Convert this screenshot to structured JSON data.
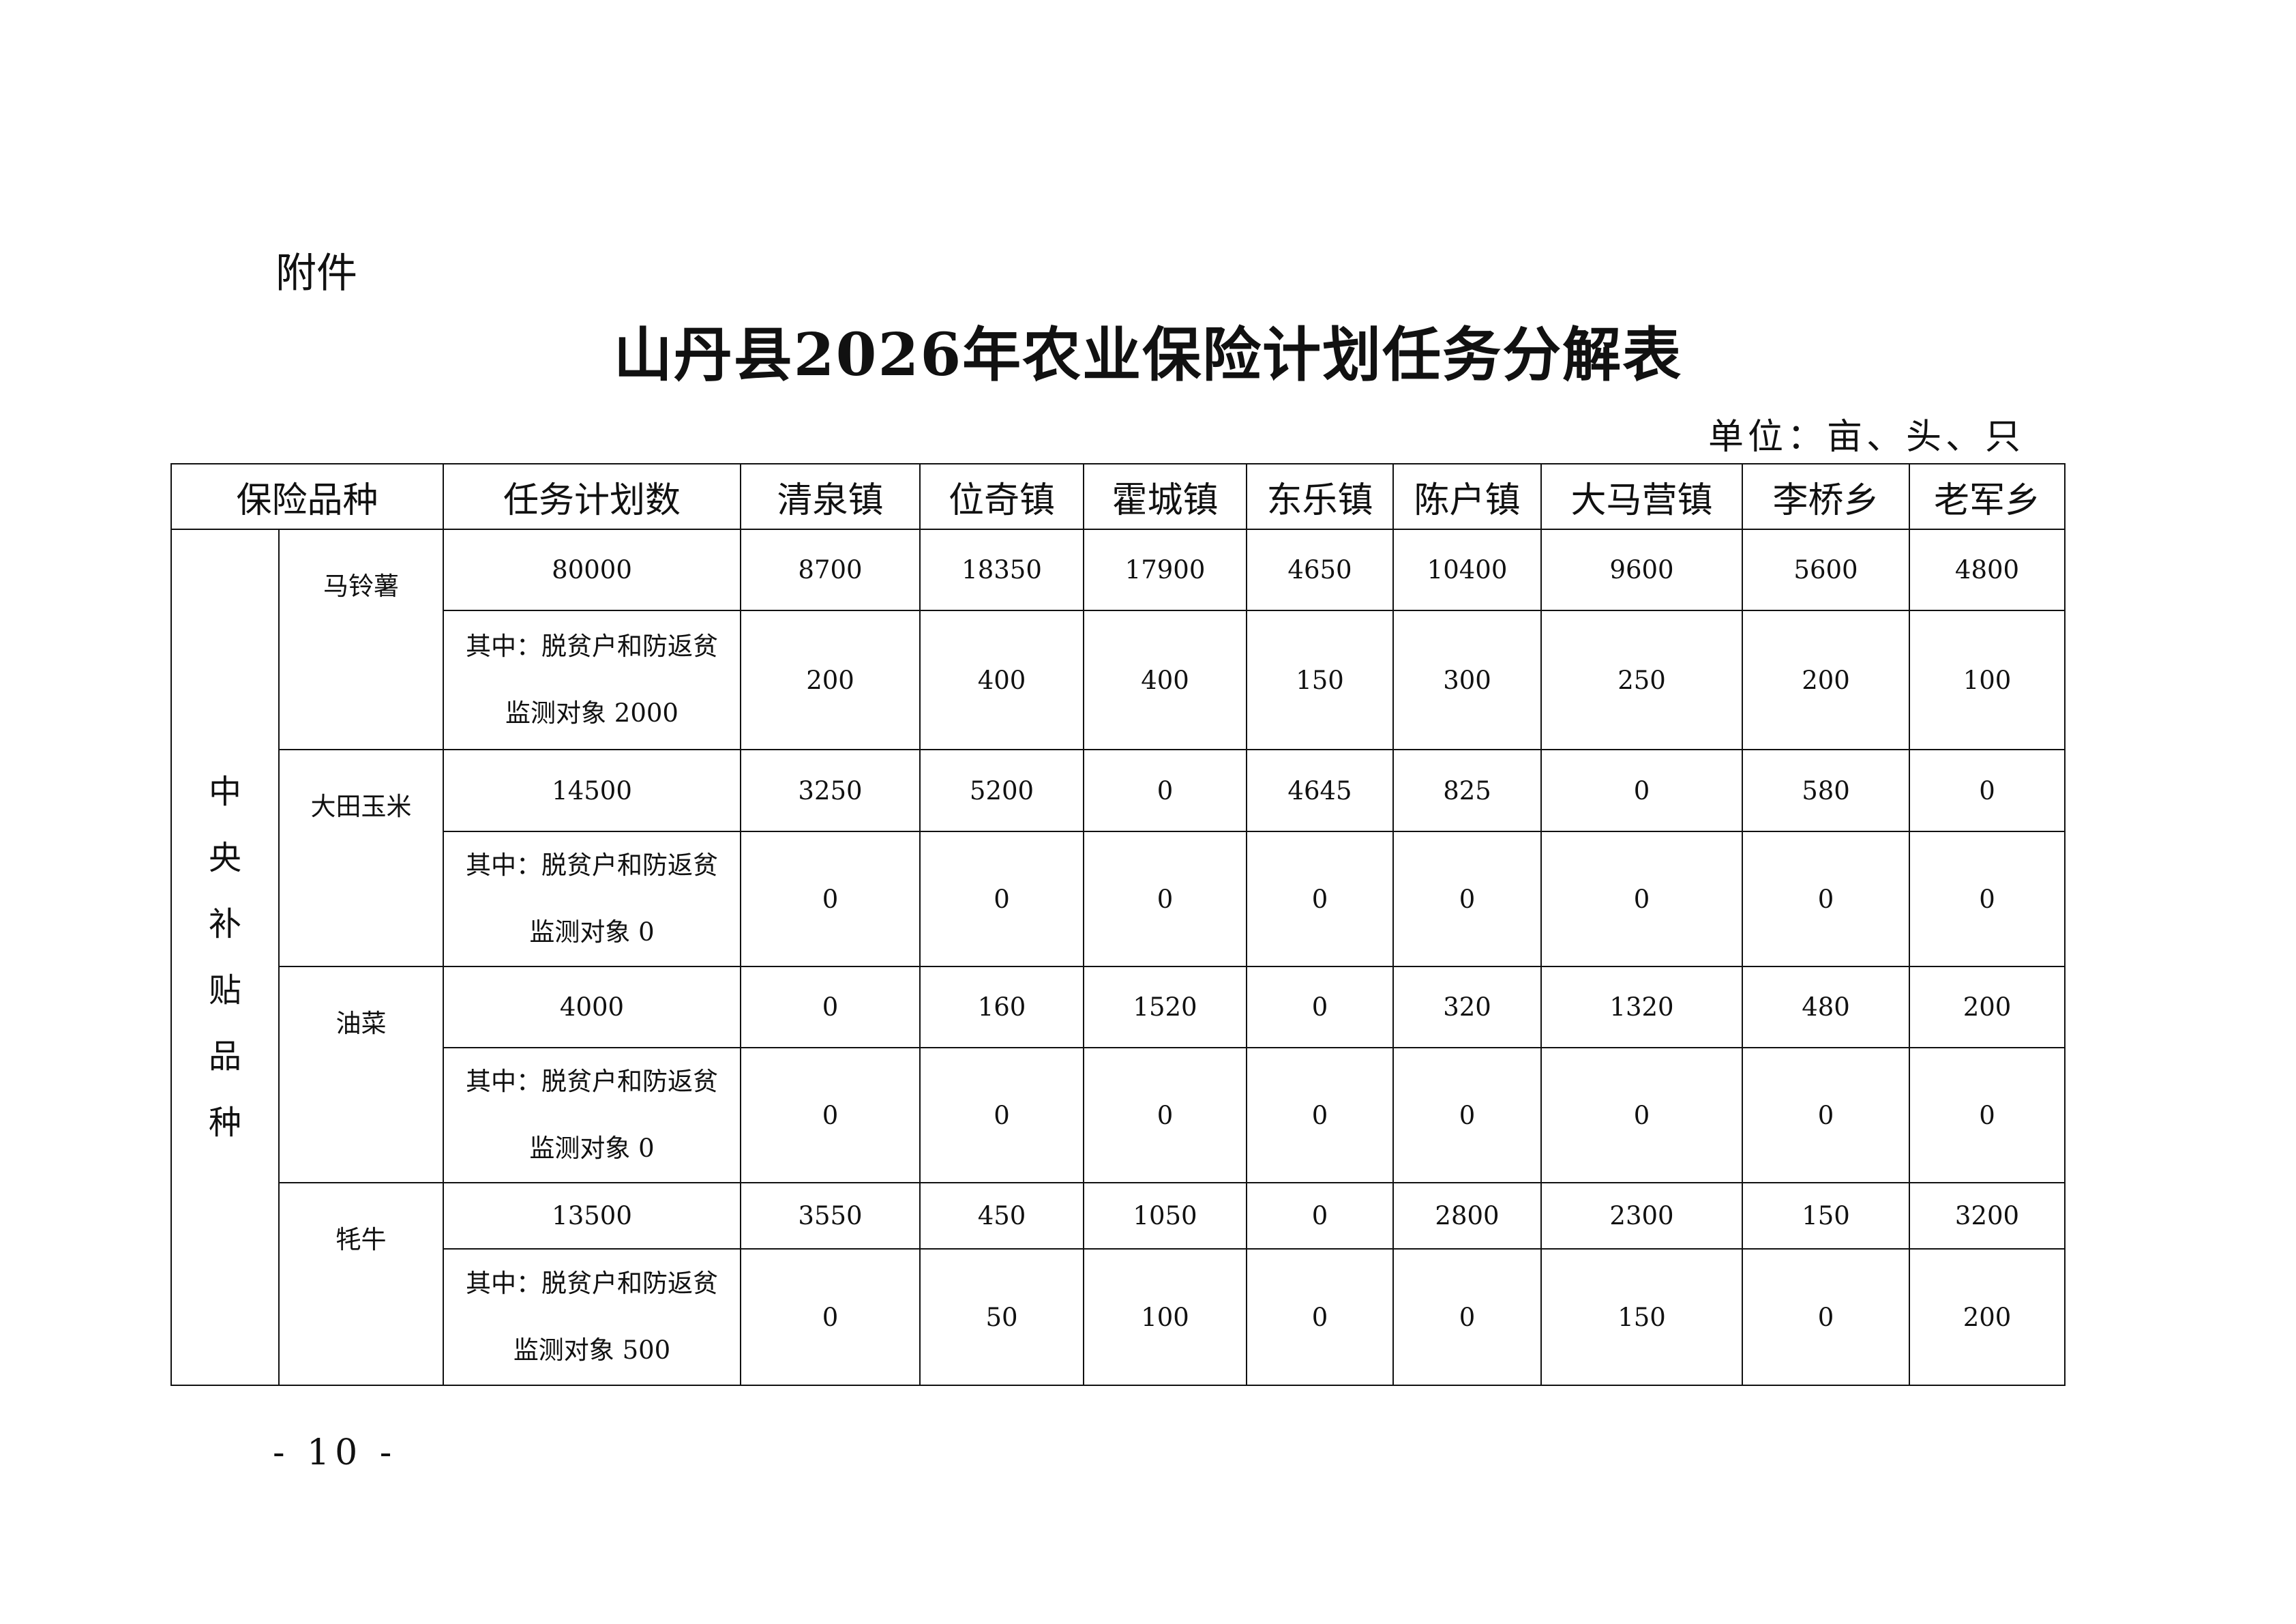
{
  "attachment_label": "附件",
  "title": "山丹县2026年农业保险计划任务分解表",
  "unit": "单位：亩、头、只",
  "headers": [
    "保险品种",
    "任务计划数",
    "清泉镇",
    "位奇镇",
    "霍城镇",
    "东乐镇",
    "陈户镇",
    "大马营镇",
    "李桥乡",
    "老军乡"
  ],
  "category": [
    "中",
    "央",
    "补",
    "贴",
    "品",
    "种"
  ],
  "crops": [
    {
      "name": "马铃薯",
      "total": "80000",
      "values": [
        "8700",
        "18350",
        "17900",
        "4650",
        "10400",
        "9600",
        "5600",
        "4800"
      ],
      "sub_line1": "其中：脱贫户和防返贫",
      "sub_line2": "监测对象 2000",
      "sub_values": [
        "200",
        "400",
        "400",
        "150",
        "300",
        "250",
        "200",
        "100"
      ]
    },
    {
      "name": "大田玉米",
      "total": "14500",
      "values": [
        "3250",
        "5200",
        "0",
        "4645",
        "825",
        "0",
        "580",
        "0"
      ],
      "sub_line1": "其中：脱贫户和防返贫",
      "sub_line2": "监测对象 0",
      "sub_values": [
        "0",
        "0",
        "0",
        "0",
        "0",
        "0",
        "0",
        "0"
      ]
    },
    {
      "name": "油菜",
      "total": "4000",
      "values": [
        "0",
        "160",
        "1520",
        "0",
        "320",
        "1320",
        "480",
        "200"
      ],
      "sub_line1": "其中：脱贫户和防返贫",
      "sub_line2": "监测对象 0",
      "sub_values": [
        "0",
        "0",
        "0",
        "0",
        "0",
        "0",
        "0",
        "0"
      ]
    },
    {
      "name": "牦牛",
      "total": "13500",
      "values": [
        "3550",
        "450",
        "1050",
        "0",
        "2800",
        "2300",
        "150",
        "3200"
      ],
      "sub_line1": "其中：脱贫户和防返贫",
      "sub_line2": "监测对象 500",
      "sub_values": [
        "0",
        "50",
        "100",
        "0",
        "0",
        "150",
        "0",
        "200"
      ]
    }
  ],
  "page_number": "- 10 -"
}
